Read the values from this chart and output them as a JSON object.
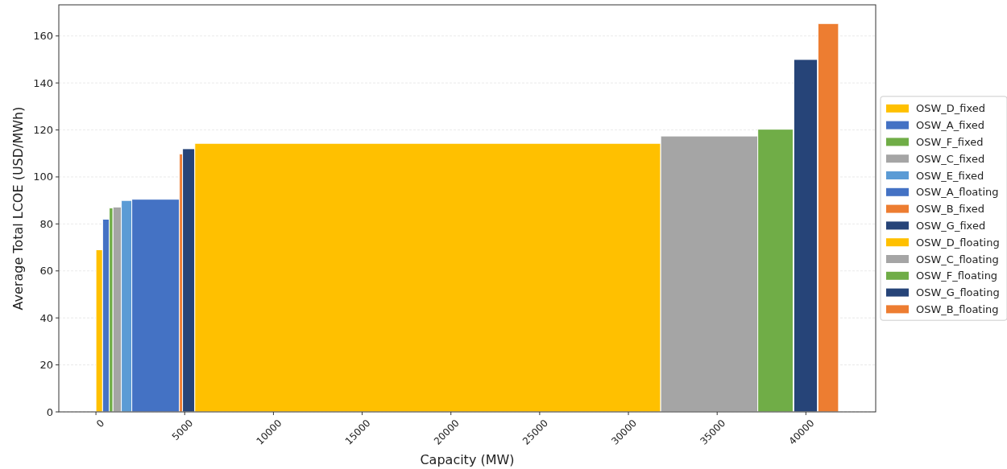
{
  "chart_data": {
    "type": "area",
    "xlabel": "Capacity (MW)",
    "ylabel": "Average Total LCOE (USD/MWh)",
    "xlim": [
      -2092,
      43932
    ],
    "ylim": [
      0,
      173.25
    ],
    "xticks": [
      0,
      5000,
      10000,
      15000,
      20000,
      25000,
      30000,
      35000,
      40000
    ],
    "yticks": [
      0,
      20,
      40,
      60,
      80,
      100,
      120,
      140,
      160
    ],
    "grid": "y",
    "legend": "right",
    "series": [
      {
        "name": "OSW_D_fixed",
        "color": "#ffc000",
        "x": [
          0,
          375
        ],
        "values": [
          69,
          69
        ]
      },
      {
        "name": "OSW_A_fixed",
        "color": "#4472c4",
        "x": [
          375,
          750
        ],
        "values": [
          82,
          82
        ]
      },
      {
        "name": "OSW_F_fixed",
        "color": "#70ad47",
        "x": [
          750,
          960
        ],
        "values": [
          86.8,
          86.8
        ]
      },
      {
        "name": "OSW_C_fixed",
        "color": "#a5a5a5",
        "x": [
          960,
          1430
        ],
        "values": [
          87.2,
          87.2
        ]
      },
      {
        "name": "OSW_E_fixed",
        "color": "#5b9bd5",
        "x": [
          1430,
          2020
        ],
        "values": [
          90,
          90
        ]
      },
      {
        "name": "OSW_A_floating",
        "color": "#4472c4",
        "x": [
          2020,
          4700
        ],
        "values": [
          90.5,
          90.5
        ]
      },
      {
        "name": "OSW_B_fixed",
        "color": "#ed7d31",
        "x": [
          4700,
          4880
        ],
        "values": [
          109.8,
          109.8
        ]
      },
      {
        "name": "OSW_G_fixed",
        "color": "#264478",
        "x": [
          4880,
          5570
        ],
        "values": [
          112,
          112
        ]
      },
      {
        "name": "OSW_D_floating",
        "color": "#ffc000",
        "x": [
          5570,
          31820
        ],
        "values": [
          114.3,
          114.3
        ]
      },
      {
        "name": "OSW_C_floating",
        "color": "#a5a5a5",
        "x": [
          31820,
          37290
        ],
        "values": [
          117.4,
          117.4
        ]
      },
      {
        "name": "OSW_F_floating",
        "color": "#70ad47",
        "x": [
          37290,
          39280
        ],
        "values": [
          120.3,
          120.3
        ]
      },
      {
        "name": "OSW_G_floating",
        "color": "#264478",
        "x": [
          39320,
          40650
        ],
        "values": [
          150,
          150
        ]
      },
      {
        "name": "OSW_B_floating",
        "color": "#ed7d31",
        "x": [
          40680,
          41840
        ],
        "values": [
          165.3,
          165.3
        ]
      }
    ]
  }
}
